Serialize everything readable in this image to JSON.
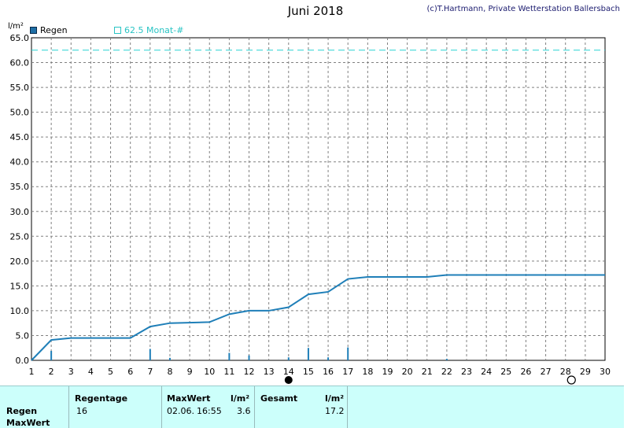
{
  "header": {
    "title": "Juni 2018",
    "copyright": "(c)T.Hartmann, Private Wetterstation Ballersbach",
    "unit": "l/m²"
  },
  "legend": {
    "series_label": "Regen",
    "monthly_label": "62.5 Monat-#"
  },
  "colors": {
    "series": "#1f7fb8",
    "monthly_line": "#29d3d3",
    "grid": "#808080",
    "table_bg": "#ccfffb"
  },
  "chart_data": {
    "type": "line",
    "x_ticks": [
      1,
      2,
      3,
      4,
      5,
      6,
      7,
      8,
      9,
      10,
      11,
      12,
      13,
      14,
      15,
      16,
      17,
      18,
      19,
      20,
      21,
      22,
      23,
      24,
      25,
      26,
      27,
      28,
      29,
      30
    ],
    "y_ticks": [
      "0.0",
      "5.0",
      "10.0",
      "15.0",
      "20.0",
      "25.0",
      "30.0",
      "35.0",
      "40.0",
      "45.0",
      "50.0",
      "55.0",
      "60.0",
      "65.0"
    ],
    "xlim": [
      1,
      30
    ],
    "ylim": [
      0,
      65
    ],
    "grid": true,
    "series": [
      {
        "name": "Regen",
        "x": [
          1,
          2,
          3,
          6,
          7,
          8,
          10,
          11,
          12,
          13,
          14,
          15,
          16,
          17,
          18,
          21,
          22,
          30
        ],
        "y": [
          0.0,
          4.1,
          4.5,
          4.5,
          6.8,
          7.5,
          7.7,
          9.3,
          10.0,
          10.0,
          10.7,
          13.3,
          13.8,
          16.4,
          16.8,
          16.8,
          17.2,
          17.2
        ]
      }
    ],
    "daily_bars": {
      "x": [
        2,
        7,
        8,
        11,
        12,
        14,
        15,
        16,
        17,
        22
      ],
      "y": [
        1.9,
        2.3,
        0.5,
        1.5,
        1.0,
        0.6,
        2.5,
        0.6,
        2.6,
        0.3
      ]
    },
    "monthly_reference": 62.5,
    "markers": {
      "new_moon_day": 14,
      "full_moon_day": 28.3
    }
  },
  "table": {
    "row_labels": [
      "Regen",
      "MaxWert"
    ],
    "col_regentage": "Regentage",
    "col_maxwert": "MaxWert",
    "col_unit1": "l/m²",
    "col_gesamt": "Gesamt",
    "col_unit2": "l/m²",
    "regentage": "16",
    "max_date": "02.06.",
    "max_time": "16:55",
    "max_value": "3.6",
    "gesamt": "17.2"
  }
}
